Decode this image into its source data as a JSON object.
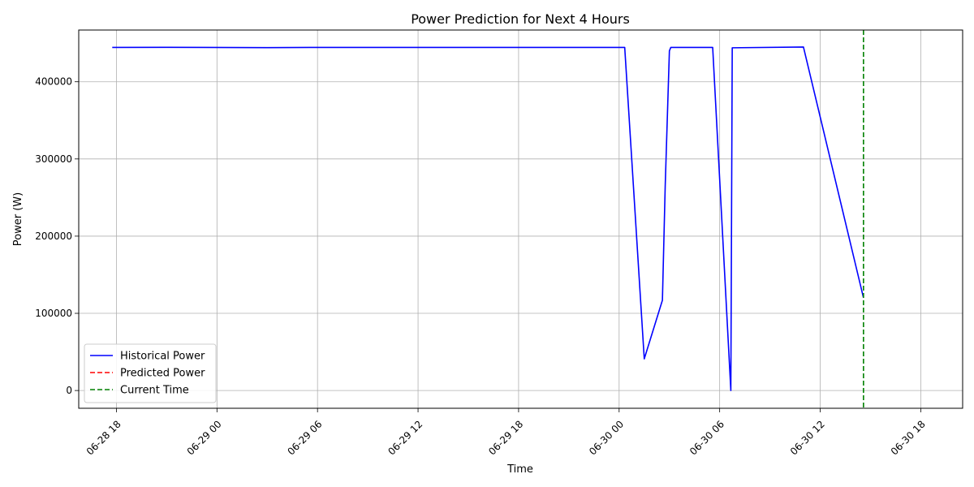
{
  "chart_data": {
    "type": "line",
    "title": "Power Prediction for Next 4 Hours",
    "xlabel": "Time",
    "ylabel": "Power (W)",
    "grid": true,
    "legend_position": "lower-left",
    "xlim": [
      "06-28 15:45",
      "06-30 20:30"
    ],
    "ylim": [
      -23000,
      467000
    ],
    "x_ticks": [
      {
        "value": "06-28 18:00",
        "label": "06-28 18"
      },
      {
        "value": "06-29 00:00",
        "label": "06-29 00"
      },
      {
        "value": "06-29 06:00",
        "label": "06-29 06"
      },
      {
        "value": "06-29 12:00",
        "label": "06-29 12"
      },
      {
        "value": "06-29 18:00",
        "label": "06-29 18"
      },
      {
        "value": "06-30 00:00",
        "label": "06-30 00"
      },
      {
        "value": "06-30 06:00",
        "label": "06-30 06"
      },
      {
        "value": "06-30 12:00",
        "label": "06-30 12"
      },
      {
        "value": "06-30 18:00",
        "label": "06-30 18"
      }
    ],
    "y_ticks": [
      {
        "value": 0,
        "label": "0"
      },
      {
        "value": 100000,
        "label": "100000"
      },
      {
        "value": 200000,
        "label": "200000"
      },
      {
        "value": 300000,
        "label": "300000"
      },
      {
        "value": 400000,
        "label": "400000"
      }
    ],
    "series": [
      {
        "name": "Historical Power",
        "color": "#0000ff",
        "style": "solid",
        "points": [
          {
            "x": "06-28 17:45",
            "y": 444500
          },
          {
            "x": "06-28 21:00",
            "y": 444600
          },
          {
            "x": "06-29 03:00",
            "y": 444200
          },
          {
            "x": "06-29 06:00",
            "y": 444500
          },
          {
            "x": "06-29 12:00",
            "y": 444500
          },
          {
            "x": "06-30 00:20",
            "y": 444500
          },
          {
            "x": "06-30 01:30",
            "y": 41000
          },
          {
            "x": "06-30 02:35",
            "y": 117000
          },
          {
            "x": "06-30 02:45",
            "y": 265000
          },
          {
            "x": "06-30 03:00",
            "y": 440000
          },
          {
            "x": "06-30 03:05",
            "y": 444500
          },
          {
            "x": "06-30 05:35",
            "y": 444500
          },
          {
            "x": "06-30 06:40",
            "y": 0
          },
          {
            "x": "06-30 06:45",
            "y": 444000
          },
          {
            "x": "06-30 11:00",
            "y": 445000
          },
          {
            "x": "06-30 14:35",
            "y": 120000
          }
        ]
      },
      {
        "name": "Predicted Power",
        "color": "#ff0000",
        "style": "dashed",
        "points": []
      }
    ],
    "markers": [
      {
        "name": "Current Time",
        "color": "#008000",
        "style": "dashed",
        "x": "06-30 14:35"
      }
    ]
  }
}
